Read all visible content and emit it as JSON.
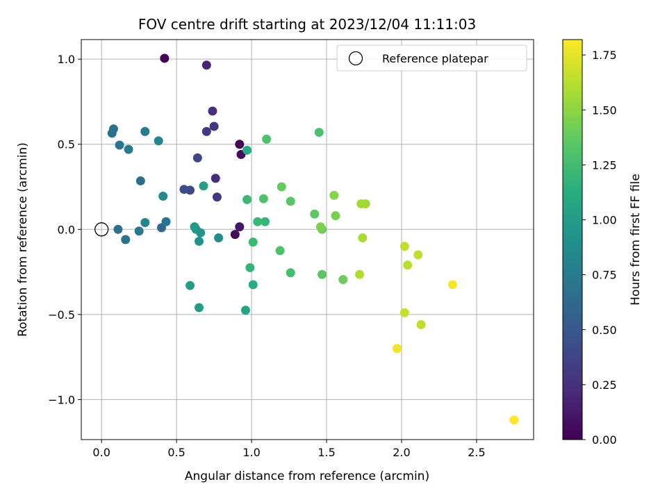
{
  "chart_data": {
    "type": "scatter",
    "title": "FOV centre drift starting at 2023/12/04 11:11:03",
    "xlabel": "Angular distance from reference (arcmin)",
    "ylabel": "Rotation from reference (arcmin)",
    "xlim": [
      -0.135,
      2.88
    ],
    "ylim": [
      -1.235,
      1.115
    ],
    "xticks": [
      0.0,
      0.5,
      1.0,
      1.5,
      2.0,
      2.5
    ],
    "xtick_labels": [
      "0.0",
      "0.5",
      "1.0",
      "1.5",
      "2.0",
      "2.5"
    ],
    "yticks": [
      -1.0,
      -0.5,
      0.0,
      0.5,
      1.0
    ],
    "ytick_labels": [
      "−1.0",
      "−0.5",
      "0.0",
      "0.5",
      "1.0"
    ],
    "grid": true,
    "legend": {
      "position": "top-right",
      "entries": [
        "Reference platepar"
      ]
    },
    "reference_point": {
      "x": 0.0,
      "y": 0.0,
      "marker": "open-circle"
    },
    "colorbar": {
      "label": "Hours from first FF file",
      "colormap": "viridis",
      "range": [
        0.0,
        1.82
      ],
      "ticks": [
        0.0,
        0.25,
        0.5,
        0.75,
        1.0,
        1.25,
        1.5,
        1.75
      ],
      "tick_labels": [
        "0.00",
        "0.25",
        "0.50",
        "0.75",
        "1.00",
        "1.25",
        "1.50",
        "1.75"
      ]
    },
    "points": [
      {
        "x": 0.42,
        "y": 1.005,
        "c": 0.02
      },
      {
        "x": 0.7,
        "y": 0.965,
        "c": 0.18
      },
      {
        "x": 0.74,
        "y": 0.695,
        "c": 0.24
      },
      {
        "x": 0.75,
        "y": 0.605,
        "c": 0.28
      },
      {
        "x": 0.7,
        "y": 0.575,
        "c": 0.3
      },
      {
        "x": 0.92,
        "y": 0.5,
        "c": 0.02
      },
      {
        "x": 0.93,
        "y": 0.44,
        "c": 0.05
      },
      {
        "x": 0.64,
        "y": 0.42,
        "c": 0.38
      },
      {
        "x": 0.76,
        "y": 0.3,
        "c": 0.22
      },
      {
        "x": 0.59,
        "y": 0.23,
        "c": 0.4
      },
      {
        "x": 0.55,
        "y": 0.235,
        "c": 0.42
      },
      {
        "x": 0.77,
        "y": 0.19,
        "c": 0.3
      },
      {
        "x": 0.89,
        "y": -0.03,
        "c": 0.04
      },
      {
        "x": 0.92,
        "y": 0.015,
        "c": 0.1
      },
      {
        "x": 0.08,
        "y": 0.59,
        "c": 0.68
      },
      {
        "x": 0.07,
        "y": 0.565,
        "c": 0.66
      },
      {
        "x": 0.12,
        "y": 0.495,
        "c": 0.7
      },
      {
        "x": 0.18,
        "y": 0.47,
        "c": 0.75
      },
      {
        "x": 0.29,
        "y": 0.575,
        "c": 0.74
      },
      {
        "x": 0.38,
        "y": 0.52,
        "c": 0.82
      },
      {
        "x": 0.26,
        "y": 0.285,
        "c": 0.64
      },
      {
        "x": 0.41,
        "y": 0.195,
        "c": 0.85
      },
      {
        "x": 0.29,
        "y": 0.04,
        "c": 0.82
      },
      {
        "x": 0.43,
        "y": 0.045,
        "c": 0.7
      },
      {
        "x": 0.4,
        "y": 0.01,
        "c": 0.62
      },
      {
        "x": 0.25,
        "y": -0.01,
        "c": 0.72
      },
      {
        "x": 0.11,
        "y": 0.0,
        "c": 0.67
      },
      {
        "x": 0.16,
        "y": -0.06,
        "c": 0.7
      },
      {
        "x": 0.62,
        "y": 0.015,
        "c": 0.98
      },
      {
        "x": 0.63,
        "y": 0.0,
        "c": 0.96
      },
      {
        "x": 0.66,
        "y": -0.02,
        "c": 0.93
      },
      {
        "x": 0.65,
        "y": -0.07,
        "c": 0.92
      },
      {
        "x": 0.68,
        "y": 0.255,
        "c": 1.02
      },
      {
        "x": 0.78,
        "y": -0.05,
        "c": 0.88
      },
      {
        "x": 0.59,
        "y": -0.33,
        "c": 1.02
      },
      {
        "x": 0.65,
        "y": -0.46,
        "c": 1.0
      },
      {
        "x": 0.96,
        "y": -0.475,
        "c": 1.05
      },
      {
        "x": 0.97,
        "y": 0.465,
        "c": 1.1
      },
      {
        "x": 0.97,
        "y": 0.175,
        "c": 1.22
      },
      {
        "x": 1.01,
        "y": -0.075,
        "c": 1.22
      },
      {
        "x": 0.99,
        "y": -0.225,
        "c": 1.18
      },
      {
        "x": 1.01,
        "y": -0.325,
        "c": 1.1
      },
      {
        "x": 1.1,
        "y": 0.53,
        "c": 1.3
      },
      {
        "x": 1.04,
        "y": 0.045,
        "c": 1.22
      },
      {
        "x": 1.09,
        "y": 0.045,
        "c": 1.2
      },
      {
        "x": 1.08,
        "y": 0.18,
        "c": 1.3
      },
      {
        "x": 1.2,
        "y": 0.25,
        "c": 1.38
      },
      {
        "x": 1.26,
        "y": 0.165,
        "c": 1.34
      },
      {
        "x": 1.19,
        "y": -0.125,
        "c": 1.3
      },
      {
        "x": 1.26,
        "y": -0.255,
        "c": 1.26
      },
      {
        "x": 1.45,
        "y": 0.57,
        "c": 1.28
      },
      {
        "x": 1.42,
        "y": 0.09,
        "c": 1.36
      },
      {
        "x": 1.46,
        "y": 0.015,
        "c": 1.46
      },
      {
        "x": 1.47,
        "y": 0.0,
        "c": 1.4
      },
      {
        "x": 1.47,
        "y": -0.265,
        "c": 1.34
      },
      {
        "x": 1.55,
        "y": 0.2,
        "c": 1.48
      },
      {
        "x": 1.56,
        "y": 0.08,
        "c": 1.44
      },
      {
        "x": 1.61,
        "y": -0.295,
        "c": 1.4
      },
      {
        "x": 1.73,
        "y": 0.15,
        "c": 1.56
      },
      {
        "x": 1.76,
        "y": 0.15,
        "c": 1.56
      },
      {
        "x": 1.74,
        "y": -0.05,
        "c": 1.58
      },
      {
        "x": 1.72,
        "y": -0.265,
        "c": 1.6
      },
      {
        "x": 2.02,
        "y": -0.1,
        "c": 1.64
      },
      {
        "x": 2.04,
        "y": -0.21,
        "c": 1.62
      },
      {
        "x": 2.11,
        "y": -0.15,
        "c": 1.64
      },
      {
        "x": 2.02,
        "y": -0.49,
        "c": 1.66
      },
      {
        "x": 2.13,
        "y": -0.56,
        "c": 1.64
      },
      {
        "x": 1.97,
        "y": -0.7,
        "c": 1.78
      },
      {
        "x": 2.34,
        "y": -0.325,
        "c": 1.8
      },
      {
        "x": 2.75,
        "y": -1.12,
        "c": 1.82
      }
    ]
  }
}
